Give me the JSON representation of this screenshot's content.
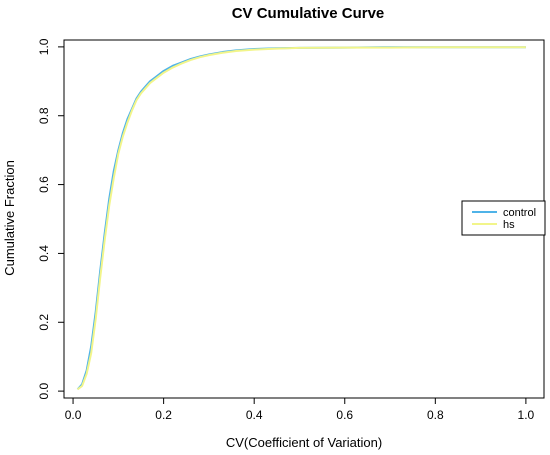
{
  "chart_data": {
    "type": "line",
    "title": "CV Cumulative Curve",
    "xlabel": "CV(Coefficient of Variation)",
    "ylabel": "Cumulative Fraction",
    "xlim": [
      -0.02,
      1.04
    ],
    "ylim": [
      -0.02,
      1.02
    ],
    "x_ticks": [
      0.0,
      0.2,
      0.4,
      0.6,
      0.8,
      1.0
    ],
    "y_ticks": [
      0.0,
      0.2,
      0.4,
      0.6,
      0.8,
      1.0
    ],
    "x_tick_labels": [
      "0.0",
      "0.2",
      "0.4",
      "0.6",
      "0.8",
      "1.0"
    ],
    "y_tick_labels": [
      "0.0",
      "0.2",
      "0.4",
      "0.6",
      "0.8",
      "1.0"
    ],
    "grid": false,
    "legend_position": "right",
    "series": [
      {
        "name": "control",
        "color": "#4fb3e8",
        "x": [
          0.01,
          0.02,
          0.03,
          0.04,
          0.05,
          0.06,
          0.07,
          0.08,
          0.09,
          0.1,
          0.11,
          0.12,
          0.13,
          0.14,
          0.15,
          0.16,
          0.17,
          0.18,
          0.2,
          0.22,
          0.24,
          0.26,
          0.28,
          0.3,
          0.33,
          0.36,
          0.4,
          0.45,
          0.5,
          0.6,
          0.7,
          0.8,
          0.9,
          1.0
        ],
        "y": [
          0.005,
          0.02,
          0.06,
          0.13,
          0.23,
          0.35,
          0.46,
          0.56,
          0.64,
          0.7,
          0.75,
          0.79,
          0.82,
          0.85,
          0.87,
          0.885,
          0.9,
          0.91,
          0.93,
          0.945,
          0.955,
          0.965,
          0.972,
          0.978,
          0.985,
          0.99,
          0.994,
          0.996,
          0.997,
          0.998,
          0.999,
          0.999,
          0.999,
          0.999
        ]
      },
      {
        "name": "hs",
        "color": "#f2f58a",
        "x": [
          0.01,
          0.02,
          0.03,
          0.04,
          0.05,
          0.06,
          0.07,
          0.08,
          0.09,
          0.1,
          0.11,
          0.12,
          0.13,
          0.14,
          0.15,
          0.16,
          0.17,
          0.18,
          0.2,
          0.22,
          0.24,
          0.26,
          0.28,
          0.3,
          0.33,
          0.36,
          0.4,
          0.45,
          0.5,
          0.6,
          0.7,
          0.8,
          0.9,
          1.0
        ],
        "y": [
          0.005,
          0.015,
          0.05,
          0.11,
          0.21,
          0.33,
          0.44,
          0.54,
          0.62,
          0.69,
          0.74,
          0.78,
          0.815,
          0.845,
          0.865,
          0.88,
          0.895,
          0.905,
          0.925,
          0.94,
          0.952,
          0.962,
          0.97,
          0.976,
          0.983,
          0.988,
          0.992,
          0.995,
          0.997,
          0.998,
          0.998,
          0.999,
          0.999,
          0.999
        ]
      }
    ]
  }
}
